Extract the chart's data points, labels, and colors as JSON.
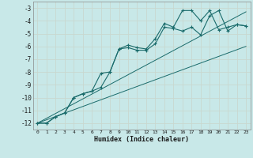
{
  "xlabel": "Humidex (Indice chaleur)",
  "bg_color": "#c8e8e8",
  "grid_color": "#d0e8e0",
  "line_color": "#1a6b6b",
  "xlim": [
    -0.5,
    23.5
  ],
  "ylim": [
    -12.5,
    -2.5
  ],
  "yticks": [
    -12,
    -11,
    -10,
    -9,
    -8,
    -7,
    -6,
    -5,
    -4,
    -3
  ],
  "xticks": [
    0,
    1,
    2,
    3,
    4,
    5,
    6,
    7,
    8,
    9,
    10,
    11,
    12,
    13,
    14,
    15,
    16,
    17,
    18,
    19,
    20,
    21,
    22,
    23
  ],
  "series1_x": [
    0,
    1,
    2,
    3,
    4,
    5,
    6,
    7,
    8,
    9,
    10,
    11,
    12,
    13,
    14,
    15,
    16,
    17,
    18,
    19,
    20,
    21,
    22,
    23
  ],
  "series1_y": [
    -12.0,
    -12.0,
    -11.5,
    -11.2,
    -10.0,
    -9.7,
    -9.5,
    -8.1,
    -8.0,
    -6.2,
    -5.9,
    -6.1,
    -6.2,
    -5.4,
    -4.2,
    -4.5,
    -3.2,
    -3.2,
    -4.0,
    -3.2,
    -4.7,
    -4.5,
    -4.3,
    -4.4
  ],
  "series2_x": [
    0,
    1,
    2,
    3,
    4,
    5,
    6,
    7,
    8,
    9,
    10,
    11,
    12,
    13,
    14,
    15,
    16,
    17,
    18,
    19,
    20,
    21,
    22,
    23
  ],
  "series2_y": [
    -12.0,
    -12.0,
    -11.5,
    -11.2,
    -10.0,
    -9.7,
    -9.5,
    -9.2,
    -8.0,
    -6.2,
    -6.1,
    -6.3,
    -6.3,
    -5.8,
    -4.5,
    -4.6,
    -4.8,
    -4.5,
    -5.1,
    -3.6,
    -3.2,
    -4.8,
    -4.3,
    -4.4
  ],
  "line1_x": [
    0,
    23
  ],
  "line1_y": [
    -12.0,
    -3.3
  ],
  "line2_x": [
    0,
    23
  ],
  "line2_y": [
    -12.0,
    -6.0
  ]
}
